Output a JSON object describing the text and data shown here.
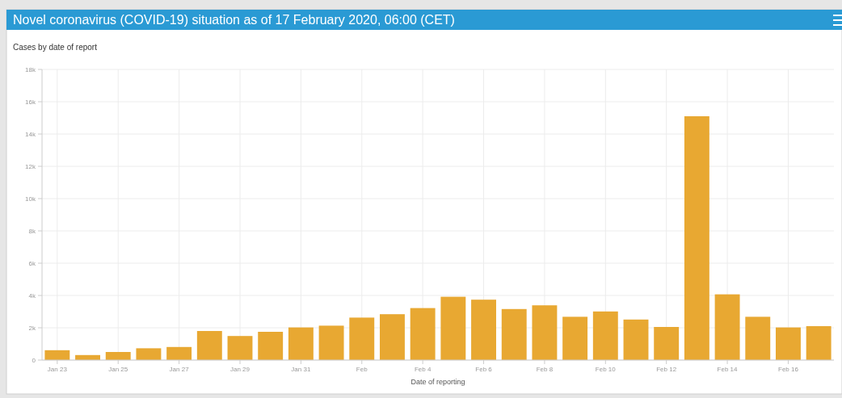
{
  "chart_data": {
    "type": "bar",
    "title": "Novel coronavirus (COVID-19) situation as of 17 February 2020, 06:00 (CET)",
    "subtitle": "Cases by date of report",
    "xlabel": "Date of reporting",
    "x": [
      "2020-01-23",
      "2020-01-24",
      "2020-01-25",
      "2020-01-26",
      "2020-01-27",
      "2020-01-28",
      "2020-01-29",
      "2020-01-30",
      "2020-01-31",
      "2020-02-01",
      "2020-02-02",
      "2020-02-03",
      "2020-02-04",
      "2020-02-05",
      "2020-02-06",
      "2020-02-07",
      "2020-02-08",
      "2020-02-09",
      "2020-02-10",
      "2020-02-11",
      "2020-02-12",
      "2020-02-13",
      "2020-02-14",
      "2020-02-15",
      "2020-02-16",
      "2020-02-17"
    ],
    "values": [
      610,
      310,
      500,
      730,
      810,
      1800,
      1490,
      1750,
      2020,
      2130,
      2630,
      2840,
      3220,
      3920,
      3740,
      3160,
      3390,
      2680,
      3010,
      2510,
      2050,
      15100,
      4070,
      2680,
      2020,
      2100
    ],
    "color": "#e8a832",
    "xlim": [
      "2020-01-22T12:00",
      "2020-02-17T12:00"
    ],
    "xticks": [
      {
        "value": "2020-01-23",
        "label": "Jan 23"
      },
      {
        "value": "2020-01-25",
        "label": "Jan 25"
      },
      {
        "value": "2020-01-27",
        "label": "Jan 27"
      },
      {
        "value": "2020-01-29",
        "label": "Jan 29"
      },
      {
        "value": "2020-01-31",
        "label": "Jan 31"
      },
      {
        "value": "2020-02-02",
        "label": "Feb"
      },
      {
        "value": "2020-02-04",
        "label": "Feb 4"
      },
      {
        "value": "2020-02-06",
        "label": "Feb 6"
      },
      {
        "value": "2020-02-08",
        "label": "Feb 8"
      },
      {
        "value": "2020-02-10",
        "label": "Feb 10"
      },
      {
        "value": "2020-02-12",
        "label": "Feb 12"
      },
      {
        "value": "2020-02-14",
        "label": "Feb 14"
      },
      {
        "value": "2020-02-16",
        "label": "Feb 16"
      }
    ],
    "ylim": [
      0,
      18000
    ],
    "yticks": [
      0,
      {
        "value": 2000,
        "label": "2k"
      },
      {
        "value": 4000,
        "label": "4k"
      },
      {
        "value": 6000,
        "label": "6k"
      },
      {
        "value": 8000,
        "label": "8k"
      },
      {
        "value": 10000,
        "label": "10k"
      },
      {
        "value": 12000,
        "label": "12k"
      },
      {
        "value": 14000,
        "label": "14k"
      },
      {
        "value": 16000,
        "label": "16k"
      },
      {
        "value": 18000,
        "label": "18k"
      }
    ],
    "grid": true
  }
}
